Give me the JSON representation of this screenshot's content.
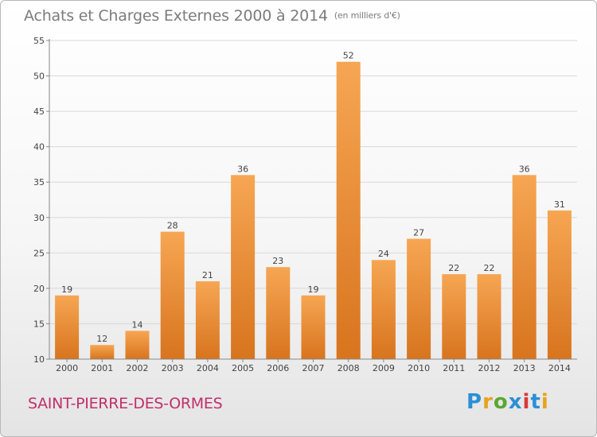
{
  "title": "Achats et Charges Externes 2000 à 2014",
  "subtitle": "(en milliers d'€)",
  "commune": "SAINT-PIERRE-DES-ORMES",
  "logo": {
    "text": "Proxiti",
    "colors": [
      "#2b8fd6",
      "#e8a21e",
      "#5aa832",
      "#2b8fd6",
      "#d83a3a",
      "#2b8fd6",
      "#e8a21e"
    ]
  },
  "colors": {
    "bar_top": "#f6a653",
    "bar_bottom": "#d8741e",
    "axis": "#888888",
    "grid": "#d8d8d8",
    "text": "#444444"
  },
  "chart_data": {
    "type": "bar",
    "title": "Achats et Charges Externes 2000 à 2014",
    "subtitle": "(en milliers d'€)",
    "categories": [
      "2000",
      "2001",
      "2002",
      "2003",
      "2004",
      "2005",
      "2006",
      "2007",
      "2008",
      "2009",
      "2010",
      "2011",
      "2012",
      "2013",
      "2014"
    ],
    "values": [
      19,
      12,
      14,
      28,
      21,
      36,
      23,
      19,
      52,
      24,
      27,
      22,
      22,
      36,
      31
    ],
    "yticks": [
      10,
      15,
      20,
      25,
      30,
      35,
      40,
      45,
      50,
      55
    ],
    "ylim": [
      10,
      55
    ],
    "xlabel": "",
    "ylabel": "",
    "grid": true
  }
}
